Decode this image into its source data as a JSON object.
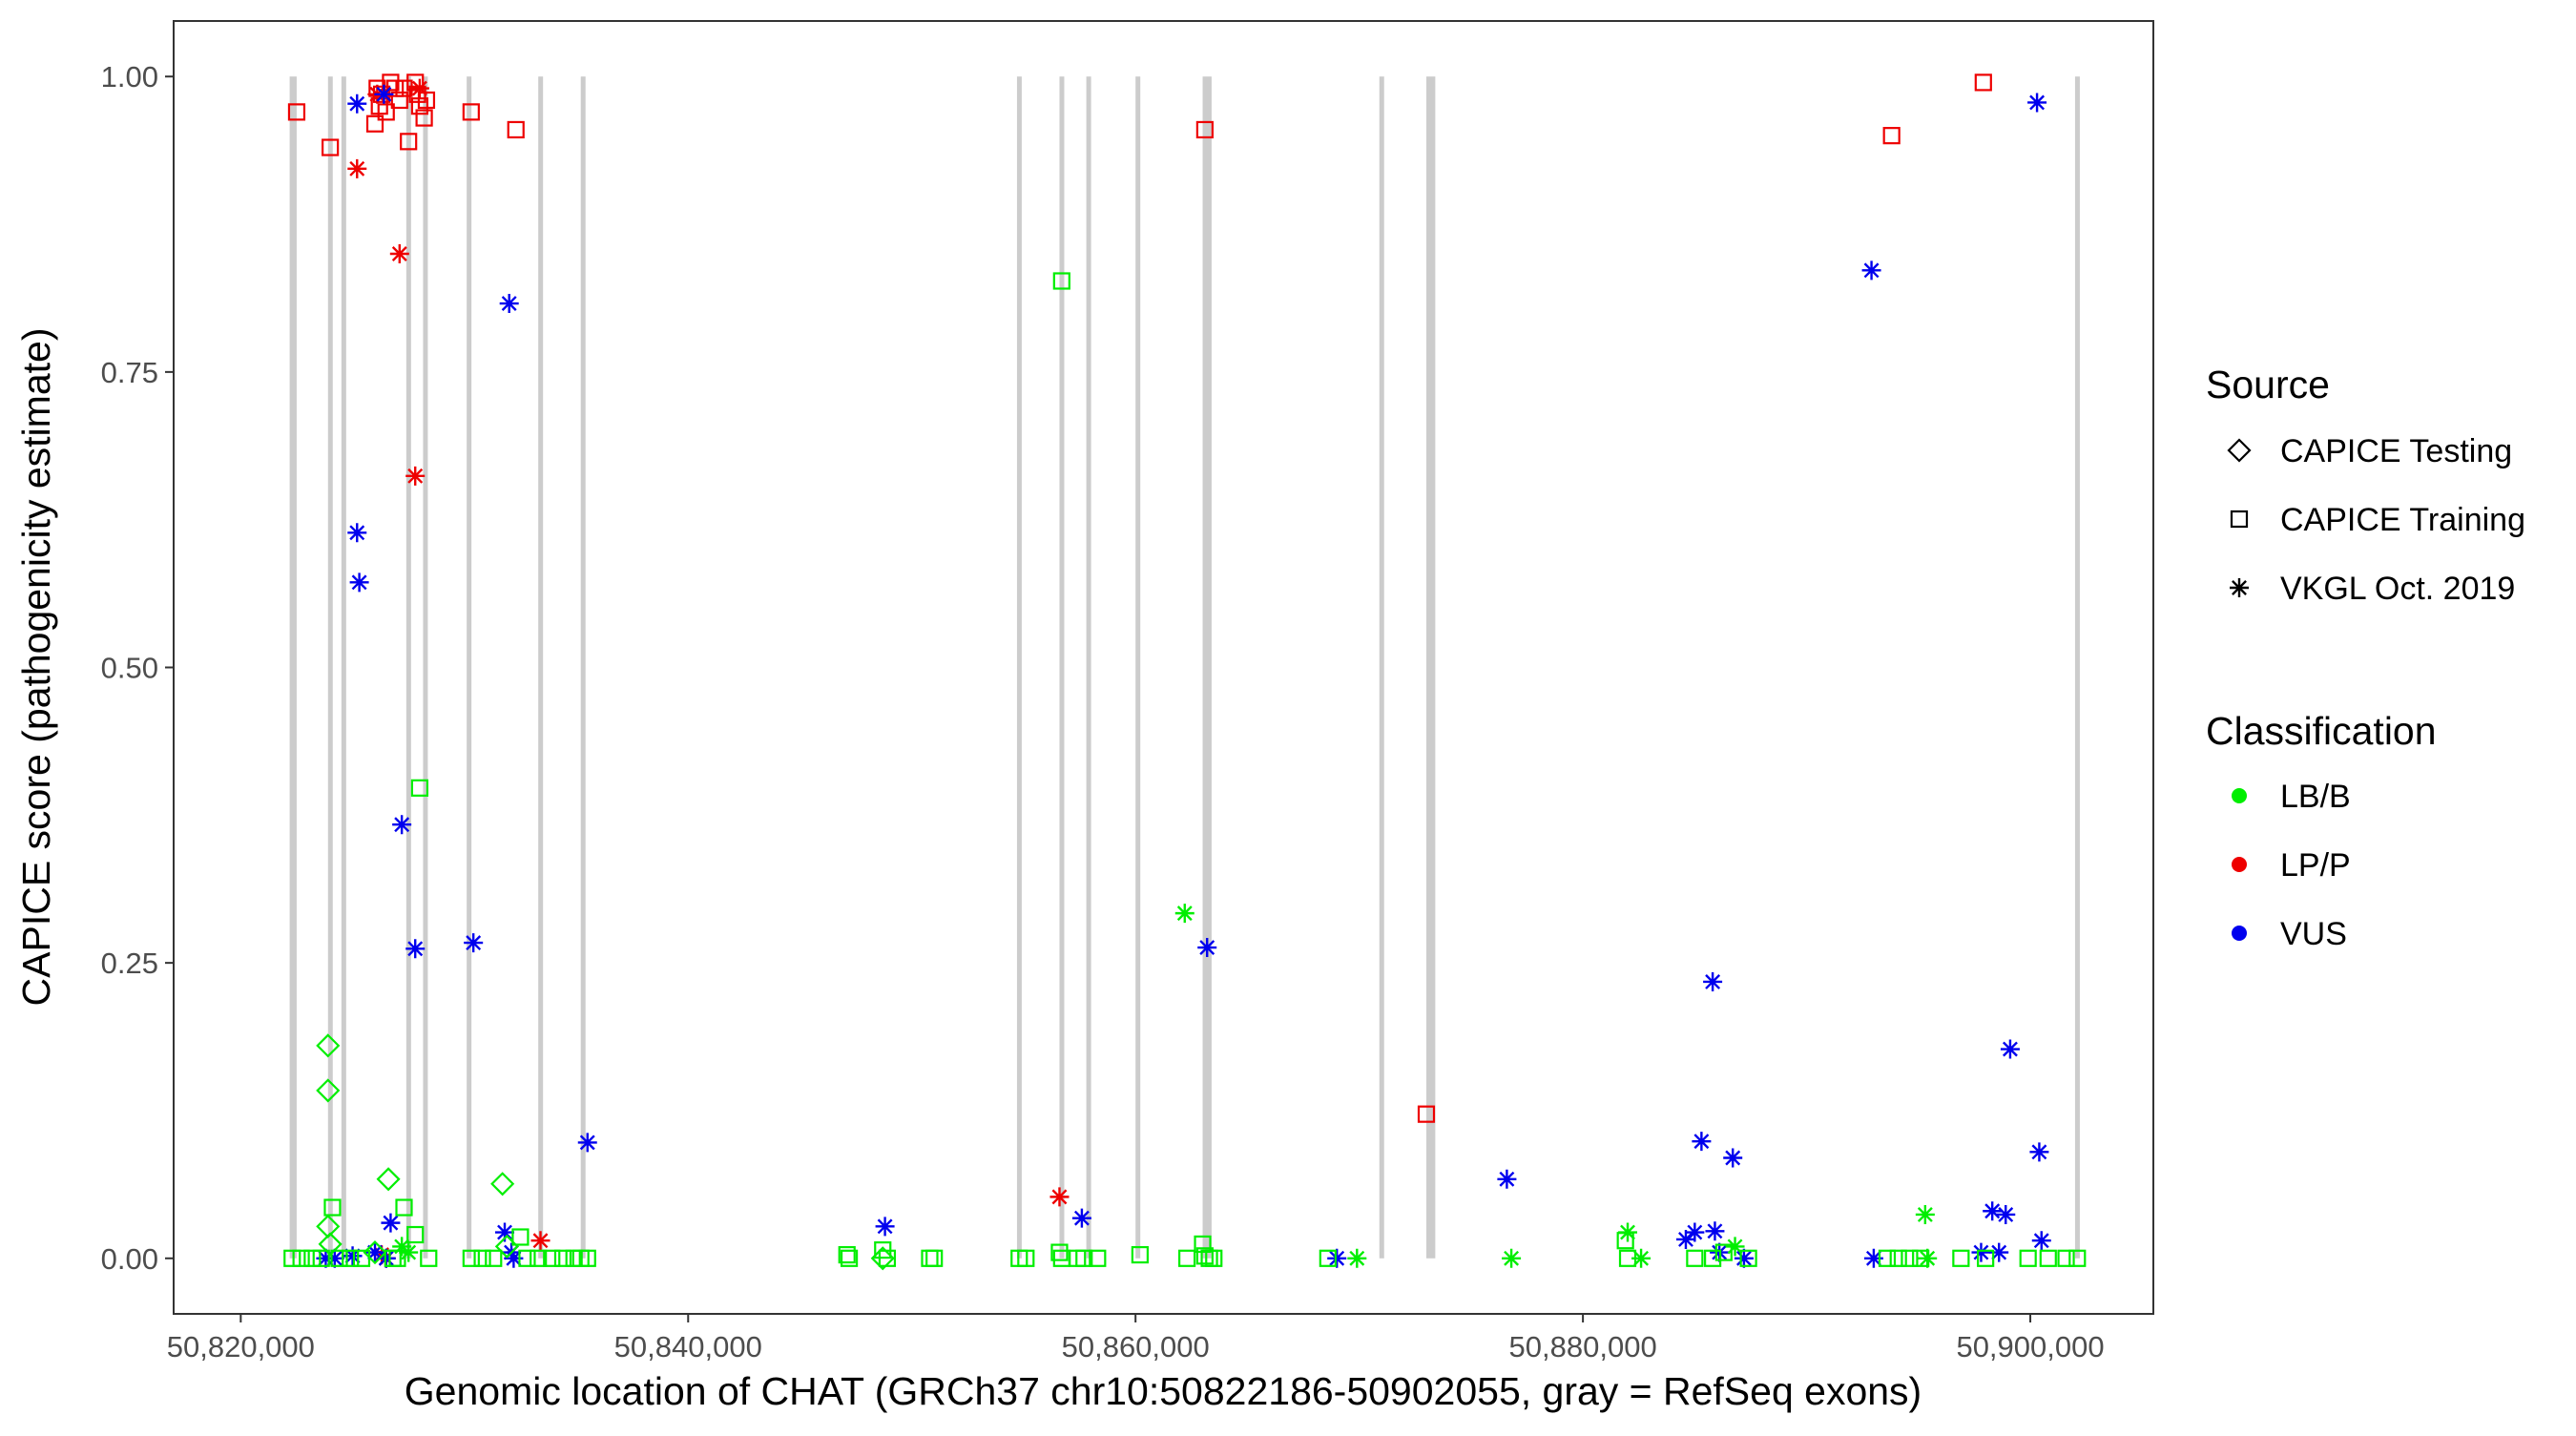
{
  "chart_data": {
    "type": "scatter",
    "xlabel": "Genomic location of CHAT (GRCh37 chr10:50822186-50902055, gray = RefSeq exons)",
    "ylabel": "CAPICE score (pathogenicity estimate)",
    "xlim": [
      50817000,
      50905500
    ],
    "ylim": [
      -0.047,
      1.047
    ],
    "x_ticks": [
      50820000,
      50840000,
      50860000,
      50880000,
      50900000
    ],
    "x_tick_labels": [
      "50,820,000",
      "50,840,000",
      "50,860,000",
      "50,880,000",
      "50,900,000"
    ],
    "y_ticks": [
      0,
      0.25,
      0.5,
      0.75,
      1.0
    ],
    "y_tick_labels": [
      "0.00",
      "0.25",
      "0.50",
      "0.75",
      "1.00"
    ],
    "grid": false,
    "exons": [
      [
        50822186,
        50822500
      ],
      [
        50823900,
        50824050
      ],
      [
        50824500,
        50824650
      ],
      [
        50827400,
        50827600
      ],
      [
        50828150,
        50828300
      ],
      [
        50830100,
        50830250
      ],
      [
        50833300,
        50833450
      ],
      [
        50835200,
        50835400
      ],
      [
        50854700,
        50854850
      ],
      [
        50856600,
        50856750
      ],
      [
        50857800,
        50857950
      ],
      [
        50860000,
        50860150
      ],
      [
        50863000,
        50863400
      ],
      [
        50870900,
        50871050
      ],
      [
        50873000,
        50873400
      ],
      [
        50902000,
        50902055
      ]
    ],
    "exon_color": "#cccccc",
    "legend": {
      "source_title": "Source",
      "source_items": [
        {
          "label": "CAPICE Testing",
          "shape": "diamond"
        },
        {
          "label": "CAPICE Training",
          "shape": "square"
        },
        {
          "label": "VKGL Oct. 2019",
          "shape": "asterisk"
        }
      ],
      "class_title": "Classification",
      "class_items": [
        {
          "label": "LB/B",
          "color": "#00ee00"
        },
        {
          "label": "LP/P",
          "color": "#ee0000"
        },
        {
          "label": "VUS",
          "color": "#0000ee"
        }
      ],
      "position": "right"
    },
    "series": [
      {
        "source": "CAPICE Training",
        "classification": "LP/P",
        "shape": "square",
        "color": "#ee0000",
        "points": [
          [
            50822500,
            0.97
          ],
          [
            50824000,
            0.94
          ],
          [
            50826000,
            0.96
          ],
          [
            50826100,
            0.99
          ],
          [
            50826200,
            0.975
          ],
          [
            50826300,
            0.985
          ],
          [
            50826500,
            0.97
          ],
          [
            50826700,
            0.995
          ],
          [
            50826900,
            0.99
          ],
          [
            50827100,
            0.98
          ],
          [
            50827300,
            0.99
          ],
          [
            50827500,
            0.945
          ],
          [
            50827800,
            0.995
          ],
          [
            50827900,
            0.985
          ],
          [
            50828000,
            0.975
          ],
          [
            50828200,
            0.965
          ],
          [
            50828300,
            0.98
          ],
          [
            50830300,
            0.97
          ],
          [
            50832300,
            0.955
          ],
          [
            50863100,
            0.955
          ],
          [
            50873000,
            0.122
          ],
          [
            50893800,
            0.95
          ],
          [
            50897900,
            0.995
          ]
        ]
      },
      {
        "source": "VKGL Oct. 2019",
        "classification": "LP/P",
        "shape": "asterisk",
        "color": "#ee0000",
        "points": [
          [
            50825200,
            0.922
          ],
          [
            50826100,
            0.985
          ],
          [
            50827100,
            0.85
          ],
          [
            50827800,
            0.662
          ],
          [
            50828000,
            0.99
          ],
          [
            50826300,
            0.003
          ],
          [
            50826500,
            0.0
          ],
          [
            50833400,
            0.015
          ],
          [
            50856600,
            0.052
          ]
        ]
      },
      {
        "source": "VKGL Oct. 2019",
        "classification": "VUS",
        "shape": "asterisk",
        "color": "#0000ee",
        "points": [
          [
            50825200,
            0.977
          ],
          [
            50826400,
            0.985
          ],
          [
            50832000,
            0.808
          ],
          [
            50825200,
            0.614
          ],
          [
            50825300,
            0.572
          ],
          [
            50827200,
            0.367
          ],
          [
            50827800,
            0.262
          ],
          [
            50830400,
            0.267
          ],
          [
            50835500,
            0.098
          ],
          [
            50826700,
            0.03
          ],
          [
            50831800,
            0.022
          ],
          [
            50832100,
            0.005
          ],
          [
            50823800,
            0.0
          ],
          [
            50824200,
            0.0
          ],
          [
            50825000,
            0.002
          ],
          [
            50826000,
            0.005
          ],
          [
            50826500,
            0.0
          ],
          [
            50832200,
            0.0
          ],
          [
            50848800,
            0.027
          ],
          [
            50857600,
            0.034
          ],
          [
            50863200,
            0.263
          ],
          [
            50869000,
            0.0
          ],
          [
            50876600,
            0.067
          ],
          [
            50884600,
            0.016
          ],
          [
            50885000,
            0.022
          ],
          [
            50885300,
            0.099
          ],
          [
            50885800,
            0.234
          ],
          [
            50885900,
            0.023
          ],
          [
            50886100,
            0.005
          ],
          [
            50886700,
            0.085
          ],
          [
            50887200,
            0.0
          ],
          [
            50892900,
            0.836
          ],
          [
            50893000,
            0.0
          ],
          [
            50897800,
            0.005
          ],
          [
            50898300,
            0.04
          ],
          [
            50898600,
            0.005
          ],
          [
            50898900,
            0.037
          ],
          [
            50899100,
            0.177
          ],
          [
            50900300,
            0.978
          ],
          [
            50900400,
            0.09
          ],
          [
            50900500,
            0.015
          ]
        ]
      },
      {
        "source": "VKGL Oct. 2019",
        "classification": "LB/B",
        "shape": "asterisk",
        "color": "#00ee00",
        "points": [
          [
            50827200,
            0.01
          ],
          [
            50827500,
            0.005
          ],
          [
            50862200,
            0.292
          ],
          [
            50869900,
            0.0
          ],
          [
            50876800,
            0.0
          ],
          [
            50882000,
            0.022
          ],
          [
            50882600,
            0.0
          ],
          [
            50886800,
            0.01
          ],
          [
            50895300,
            0.037
          ],
          [
            50895400,
            0.0
          ]
        ]
      },
      {
        "source": "CAPICE Testing",
        "classification": "LB/B",
        "shape": "diamond",
        "color": "#00ee00",
        "points": [
          [
            50823900,
            0.18
          ],
          [
            50823900,
            0.142
          ],
          [
            50826600,
            0.067
          ],
          [
            50831700,
            0.063
          ],
          [
            50823900,
            0.027
          ],
          [
            50824000,
            0.012
          ],
          [
            50826000,
            0.005
          ],
          [
            50831900,
            0.01
          ],
          [
            50848700,
            0.0
          ]
        ]
      },
      {
        "source": "CAPICE Training",
        "classification": "LB/B",
        "shape": "square",
        "color": "#00ee00",
        "points": [
          [
            50828000,
            0.398
          ],
          [
            50824100,
            0.043
          ],
          [
            50827300,
            0.043
          ],
          [
            50827800,
            0.02
          ],
          [
            50832500,
            0.018
          ],
          [
            50856700,
            0.827
          ],
          [
            50822300,
            0.0
          ],
          [
            50822700,
            0.0
          ],
          [
            50823200,
            0.0
          ],
          [
            50823600,
            0.0
          ],
          [
            50824400,
            0.0
          ],
          [
            50824900,
            0.0
          ],
          [
            50825400,
            0.0
          ],
          [
            50826800,
            0.0
          ],
          [
            50827000,
            0.0
          ],
          [
            50828400,
            0.0
          ],
          [
            50830300,
            0.0
          ],
          [
            50830800,
            0.0
          ],
          [
            50831300,
            0.0
          ],
          [
            50832800,
            0.0
          ],
          [
            50833300,
            0.0
          ],
          [
            50833900,
            0.0
          ],
          [
            50834400,
            0.0
          ],
          [
            50834900,
            0.0
          ],
          [
            50835200,
            0.0
          ],
          [
            50835500,
            0.0
          ],
          [
            50847100,
            0.003
          ],
          [
            50847200,
            0.0
          ],
          [
            50848700,
            0.007
          ],
          [
            50848900,
            0.0
          ],
          [
            50850800,
            0.0
          ],
          [
            50851000,
            0.0
          ],
          [
            50854800,
            0.0
          ],
          [
            50855100,
            0.0
          ],
          [
            50856600,
            0.005
          ],
          [
            50856700,
            0.0
          ],
          [
            50857400,
            0.0
          ],
          [
            50857700,
            0.0
          ],
          [
            50858300,
            0.0
          ],
          [
            50860200,
            0.003
          ],
          [
            50862300,
            0.0
          ],
          [
            50863000,
            0.012
          ],
          [
            50863100,
            0.002
          ],
          [
            50863300,
            0.0
          ],
          [
            50863500,
            0.0
          ],
          [
            50868600,
            0.0
          ],
          [
            50881900,
            0.015
          ],
          [
            50882000,
            0.0
          ],
          [
            50885000,
            0.0
          ],
          [
            50885800,
            0.0
          ],
          [
            50886300,
            0.005
          ],
          [
            50887400,
            0.0
          ],
          [
            50893600,
            0.0
          ],
          [
            50894100,
            0.0
          ],
          [
            50894600,
            0.0
          ],
          [
            50895100,
            0.0
          ],
          [
            50896900,
            0.0
          ],
          [
            50898000,
            0.0
          ],
          [
            50899900,
            0.0
          ],
          [
            50900800,
            0.0
          ],
          [
            50901600,
            0.0
          ],
          [
            50902100,
            0.0
          ]
        ]
      }
    ]
  }
}
